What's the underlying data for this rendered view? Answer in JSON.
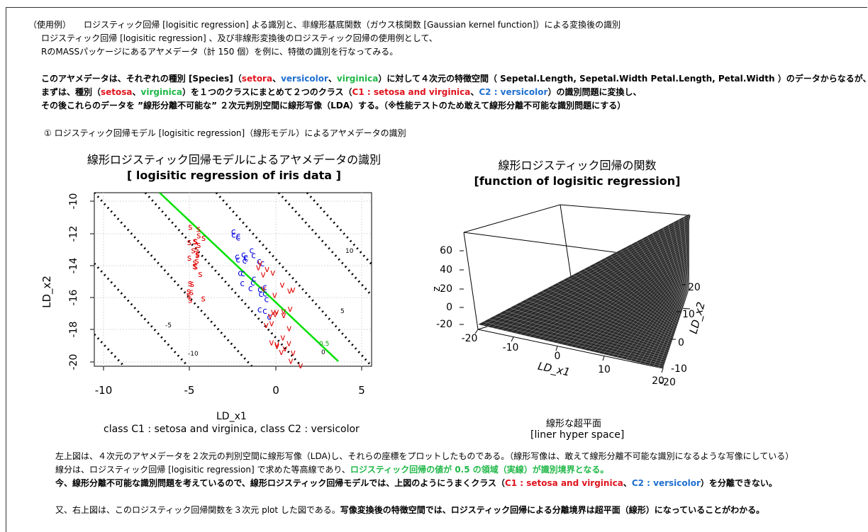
{
  "intro": {
    "line1": "（使用例）　　ロジスティック回帰 [logisitic regression] よる識別と、非線形基底関数（ガウス核関数 [Gaussian kernel function]）による変換後の識別",
    "line2": "ロジスティック回帰 [logisitic regression] 、及び非線形変換後のロジスティック回帰の使用例として、",
    "line3": "RのMASSパッケージにあるアヤメデータ（計 150 個）を例に、特徴の識別を行なってみる。"
  },
  "desc": {
    "l1_a": "このアヤメデータは、それぞれの種別 [Species]（",
    "l1_setora": "setora",
    "l1_sep1": "、",
    "l1_versicolor": "versicolor",
    "l1_sep2": "、",
    "l1_virginica": "virginica",
    "l1_b": "）に対して４次元の特徴空間（ Sepetal.Length, Sepetal.Width Petal.Length, Petal.Width ）のデータからなるが、",
    "l2_a": "まずは、種別（",
    "l2_setosa": "setosa",
    "l2_sep": "、",
    "l2_virginica": "virginica",
    "l2_b": "）を１つのクラスにまとめて２つのクラス（",
    "l2_c1": "C1 : setosa and virginica",
    "l2_sep2": "、",
    "l2_c2": "C2 : versicolor",
    "l2_c": "）の識別問題に変換し、",
    "l3": "その後これらのデータを ”線形分離不可能な” ２次元判別空間に線形写像（LDA）する。（※性能テストのため敢えて線形分離不可能な識別問題にする）"
  },
  "section1": "①  ロジスティック回帰モデル [logisitic regression]（線形モデル）によるアヤメデータの識別",
  "plot_left": {
    "title1": "線形ロジスティック回帰モデルによるアヤメデータの識別",
    "title2": "[ logisitic regression of iris data ]",
    "xlabel": "LD_x1",
    "ylabel": "LD_x2",
    "caption": "class C1 : setosa and virginica, class C2 : versicolor",
    "xticks": [
      "-10",
      "-5",
      "0",
      "5"
    ],
    "yticks": [
      "-10",
      "-12",
      "-14",
      "-16",
      "-18",
      "-20"
    ],
    "contour_labels": [
      "10",
      "5",
      "0.5",
      "0",
      "-5",
      "-10"
    ],
    "marker_setosa": "s",
    "marker_versicolor": "c",
    "marker_virginica": "v"
  },
  "plot_right": {
    "title1": "線形ロジスティック回帰の関数",
    "title2": "[function of logisitic regression]",
    "zlabel": "z",
    "xlabel": "LD_x1",
    "ylabel": "LD_x2",
    "zticks": [
      "60",
      "40",
      "20",
      "0",
      "-20"
    ],
    "xticks": [
      "-20",
      "-10",
      "0",
      "10",
      "20"
    ],
    "yticks": [
      "20",
      "10",
      "0",
      "-10",
      "-20"
    ],
    "caption1": "線形な超平面",
    "caption2": "[liner hyper space]"
  },
  "conclusion": {
    "l1": "左上図は、４次元のアヤメデータを２次元の判別空間に線形写像（LDA)し、それらの座標をプロットしたものである。（線形写像は、敢えて線形分離不可能な識別になるような写像にしている）",
    "l2_a": "線分は、ロジスティック回帰 [logisitic regression] で求めた等高線であり、",
    "l2_b": "ロジスティック回帰の値が 0.5 の領域（実線）が識別境界となる。",
    "l3_a": "今、線形分離不可能な識別問題を考えているので、線形ロジスティック回帰モデルでは、上図のようにうまくクラス（",
    "l3_c1": "C1 : setosa and virginica",
    "l3_sep": "、",
    "l3_c2": "C2 : versicolor",
    "l3_b": "）を分離できない。",
    "l4_a": "又、右上図は、このロジスティック回帰関数を３次元 plot した図である。",
    "l4_b": "写像変換後の特徴空間では、ロジスティック回帰による分離境界は超平面（線形）になっていることがわかる。"
  },
  "colors": {
    "red": "#e0141e",
    "blue": "#1f6fd0",
    "green": "#20b848",
    "boundary": "#00e000",
    "point_red": "#e00000",
    "point_blue": "#0000e0"
  }
}
